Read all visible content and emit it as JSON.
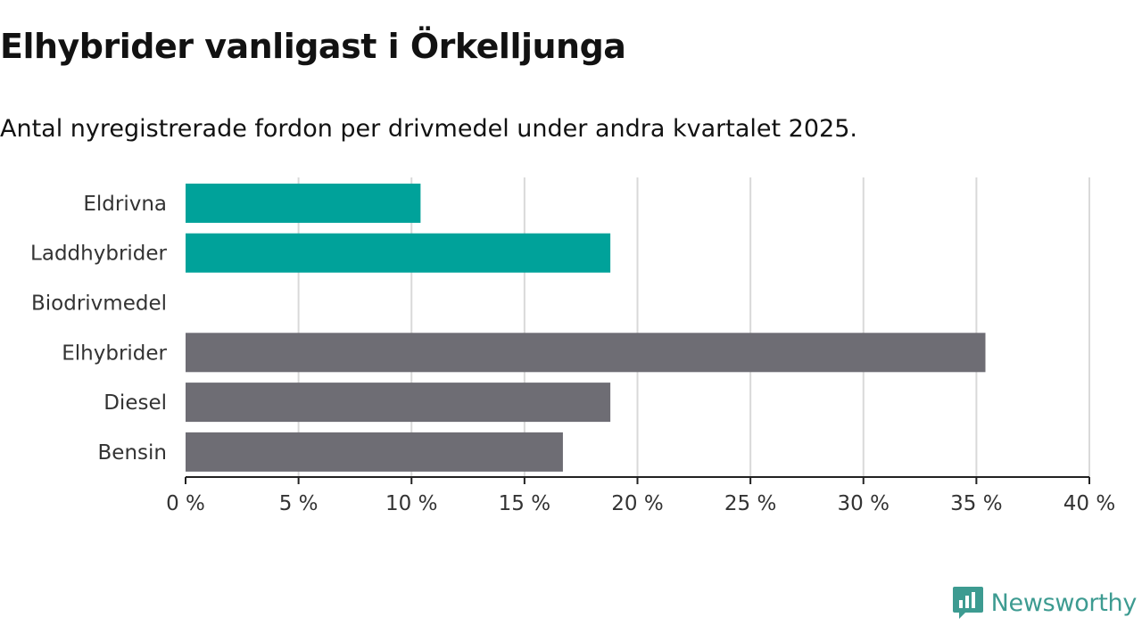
{
  "title": "Elhybrider vanligast i Örkelljunga",
  "subtitle": "Antal nyregistrerade fordon per drivmedel under andra kvartalet 2025.",
  "brand": {
    "name": "Newsworthy",
    "color": "#3d9b91",
    "icon": "newsworthy-logo-icon"
  },
  "colors": {
    "highlight": "#00a29a",
    "base": "#6e6d74",
    "grid": "#d9d9d9",
    "axis": "#222222"
  },
  "chart_data": {
    "type": "bar",
    "orientation": "horizontal",
    "categories": [
      "Eldrivna",
      "Laddhybrider",
      "Biodrivmedel",
      "Elhybrider",
      "Diesel",
      "Bensin"
    ],
    "values": [
      10.4,
      18.8,
      0,
      35.4,
      18.8,
      16.7
    ],
    "highlighted": [
      true,
      true,
      false,
      false,
      false,
      false
    ],
    "unit": "%",
    "xlim": [
      0,
      40
    ],
    "xticks": [
      0,
      5,
      10,
      15,
      20,
      25,
      30,
      35,
      40
    ],
    "xtick_labels": [
      "0 %",
      "5 %",
      "10 %",
      "15 %",
      "20 %",
      "25 %",
      "30 %",
      "35 %",
      "40 %"
    ],
    "grid": true,
    "legend": "none"
  }
}
